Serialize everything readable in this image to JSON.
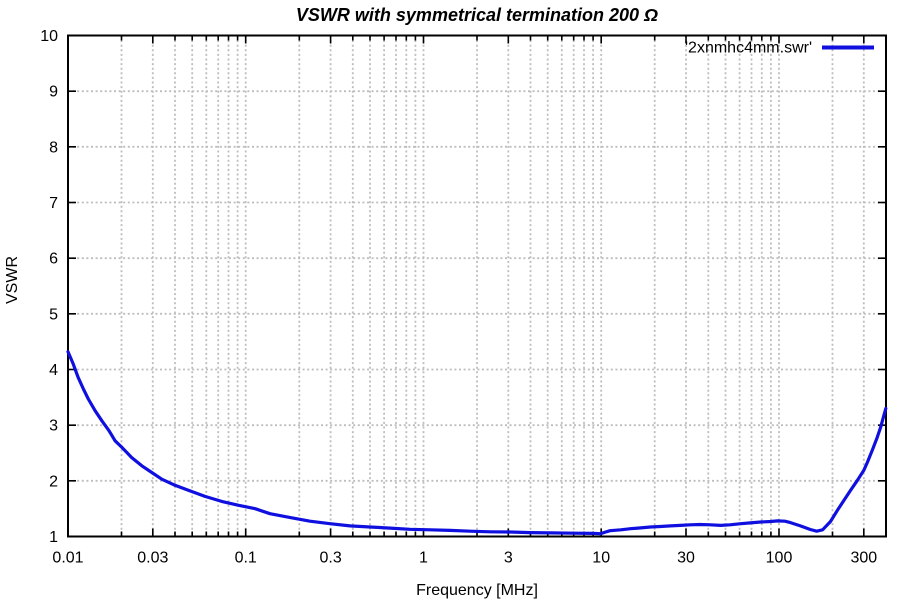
{
  "title": "VSWR with symmetrical termination 200 Ω",
  "axes": {
    "xlabel": "Frequency [MHz]",
    "ylabel": "VSWR"
  },
  "legend": {
    "label": "'2xnmhc4mm.swr'",
    "position": "top-right"
  },
  "colors": {
    "line": "#0f0fe0",
    "grid": "#bdbdbd",
    "border": "#000000",
    "background": "#ffffff",
    "text": "#000000"
  },
  "chart_data": {
    "type": "line",
    "title": "VSWR with symmetrical termination 200 Ω",
    "xlabel": "Frequency [MHz]",
    "ylabel": "VSWR",
    "x_scale": "log",
    "y_scale": "linear",
    "xlim": [
      0.01,
      400
    ],
    "ylim": [
      1,
      10
    ],
    "x_ticks": [
      0.01,
      0.03,
      0.1,
      0.3,
      1,
      3,
      10,
      30,
      100,
      300
    ],
    "x_tick_labels": [
      "0.01",
      "0.03",
      "0.1",
      "0.3",
      "1",
      "3",
      "10",
      "30",
      "100",
      "300"
    ],
    "y_ticks": [
      1,
      2,
      3,
      4,
      5,
      6,
      7,
      8,
      9,
      10
    ],
    "grid": true,
    "grid_style": "dotted gray, vertical lines at every log minor tick, horizontal at every integer",
    "legend_position": "top-right inside, no box",
    "series": [
      {
        "name": "'2xnmhc4mm.swr'",
        "color": "#0f0fe0",
        "points": [
          [
            0.01,
            4.32
          ],
          [
            0.0107,
            4.1
          ],
          [
            0.0114,
            3.86
          ],
          [
            0.0122,
            3.65
          ],
          [
            0.013,
            3.47
          ],
          [
            0.0142,
            3.26
          ],
          [
            0.0155,
            3.08
          ],
          [
            0.017,
            2.9
          ],
          [
            0.0184,
            2.72
          ],
          [
            0.0201,
            2.6
          ],
          [
            0.0228,
            2.42
          ],
          [
            0.026,
            2.27
          ],
          [
            0.0296,
            2.15
          ],
          [
            0.0337,
            2.03
          ],
          [
            0.04,
            1.92
          ],
          [
            0.0475,
            1.83
          ],
          [
            0.059,
            1.72
          ],
          [
            0.0732,
            1.63
          ],
          [
            0.0912,
            1.56
          ],
          [
            0.113,
            1.5
          ],
          [
            0.137,
            1.41
          ],
          [
            0.178,
            1.34
          ],
          [
            0.23,
            1.275
          ],
          [
            0.298,
            1.23
          ],
          [
            0.386,
            1.19
          ],
          [
            0.5,
            1.17
          ],
          [
            0.65,
            1.15
          ],
          [
            0.84,
            1.13
          ],
          [
            1.09,
            1.12
          ],
          [
            1.41,
            1.11
          ],
          [
            1.83,
            1.095
          ],
          [
            2.37,
            1.085
          ],
          [
            3.07,
            1.08
          ],
          [
            3.98,
            1.07
          ],
          [
            5.16,
            1.065
          ],
          [
            7,
            1.06
          ],
          [
            9,
            1.055
          ],
          [
            9.9,
            1.05
          ],
          [
            10.6,
            1.08
          ],
          [
            11.2,
            1.105
          ],
          [
            12.9,
            1.12
          ],
          [
            14.6,
            1.14
          ],
          [
            16.7,
            1.155
          ],
          [
            18.9,
            1.17
          ],
          [
            21.5,
            1.18
          ],
          [
            24.5,
            1.19
          ],
          [
            27.9,
            1.2
          ],
          [
            31.7,
            1.21
          ],
          [
            36,
            1.215
          ],
          [
            41,
            1.21
          ],
          [
            47,
            1.2
          ],
          [
            53,
            1.21
          ],
          [
            61,
            1.23
          ],
          [
            69,
            1.245
          ],
          [
            79,
            1.26
          ],
          [
            90,
            1.27
          ],
          [
            98,
            1.28
          ],
          [
            108,
            1.275
          ],
          [
            116,
            1.25
          ],
          [
            132,
            1.19
          ],
          [
            150,
            1.125
          ],
          [
            163,
            1.095
          ],
          [
            176,
            1.12
          ],
          [
            195,
            1.27
          ],
          [
            213,
            1.47
          ],
          [
            232,
            1.65
          ],
          [
            253,
            1.83
          ],
          [
            276,
            2.01
          ],
          [
            300,
            2.19
          ],
          [
            314,
            2.33
          ],
          [
            335,
            2.55
          ],
          [
            357,
            2.78
          ],
          [
            373,
            2.96
          ],
          [
            389,
            3.17
          ],
          [
            399,
            3.3
          ]
        ]
      }
    ]
  }
}
